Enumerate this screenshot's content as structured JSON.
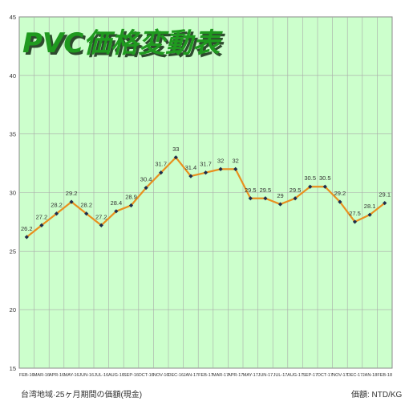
{
  "chart_data": {
    "type": "line",
    "title": "PVC価格変動表",
    "categories": [
      "FEB-16",
      "MAR-16",
      "APR-16",
      "MAY-16",
      "JUN-16",
      "JUL-16",
      "AUG-16",
      "SEP-16",
      "OCT-16",
      "NOV-16",
      "DEC-16",
      "JAN-17",
      "FEB-17",
      "MAR-17",
      "APR-17",
      "MAY-17",
      "JUN-17",
      "JUL-17",
      "AUG-17",
      "SEP-17",
      "OCT-17",
      "NOV-17",
      "DEC-17",
      "JAN-18",
      "FEB-18"
    ],
    "series": [
      {
        "values": [
          26.2,
          27.2,
          28.2,
          29.2,
          28.2,
          27.2,
          28.4,
          28.9,
          30.4,
          31.7,
          33,
          31.4,
          31.7,
          32,
          32,
          29.5,
          29.5,
          29,
          29.5,
          30.5,
          30.5,
          29.2,
          27.5,
          28.1,
          29.1
        ]
      }
    ],
    "data_labels": [
      "26.2",
      "27.2",
      "28.2",
      "29.2",
      "28.2",
      "27.2",
      "28.4",
      "28.9",
      "30.4",
      "31.7",
      "33",
      "31.4",
      "31.7",
      "32",
      "32",
      "29.5",
      "29.5",
      "29",
      "29.5",
      "30.5",
      "30.5",
      "29.2",
      "27.5",
      "28.1",
      "29.1"
    ],
    "ylim": [
      15,
      45
    ],
    "yticks": [
      15,
      20,
      25,
      30,
      35,
      40,
      45
    ],
    "grid": true,
    "legend": "none",
    "colors": {
      "plot_background": "#ccffcc",
      "grid": "#a9a9a9",
      "line": "#e8901e",
      "marker": "#1f2d4a",
      "title": "#1f9a1f",
      "title_shadow": "#2e4a2e"
    }
  },
  "footer": {
    "left_note": "台湾地域·25ヶ月期間の価額(現金)",
    "right_note": "価額: NTD/KG"
  }
}
